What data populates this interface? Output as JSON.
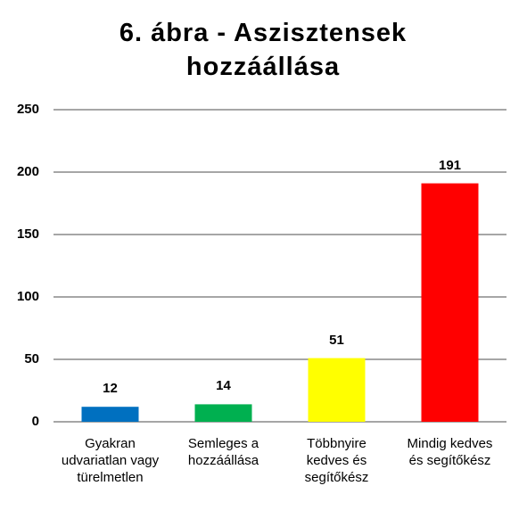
{
  "chart_data": {
    "type": "bar",
    "title": "6. ábra - Aszisztensek hozzáállása",
    "categories": [
      "Gyakran udvariatlan vagy türelmetlen",
      "Semleges a hozzáállása",
      "Többnyire kedves és segítőkész",
      "Mindig kedves és segítőkész"
    ],
    "values": [
      12,
      14,
      51,
      191
    ],
    "colors": [
      "#0070c0",
      "#00b050",
      "#ffff00",
      "#ff0000"
    ],
    "ylim": [
      0,
      250
    ],
    "yticks": [
      0,
      50,
      100,
      150,
      200,
      250
    ],
    "grid": true
  }
}
